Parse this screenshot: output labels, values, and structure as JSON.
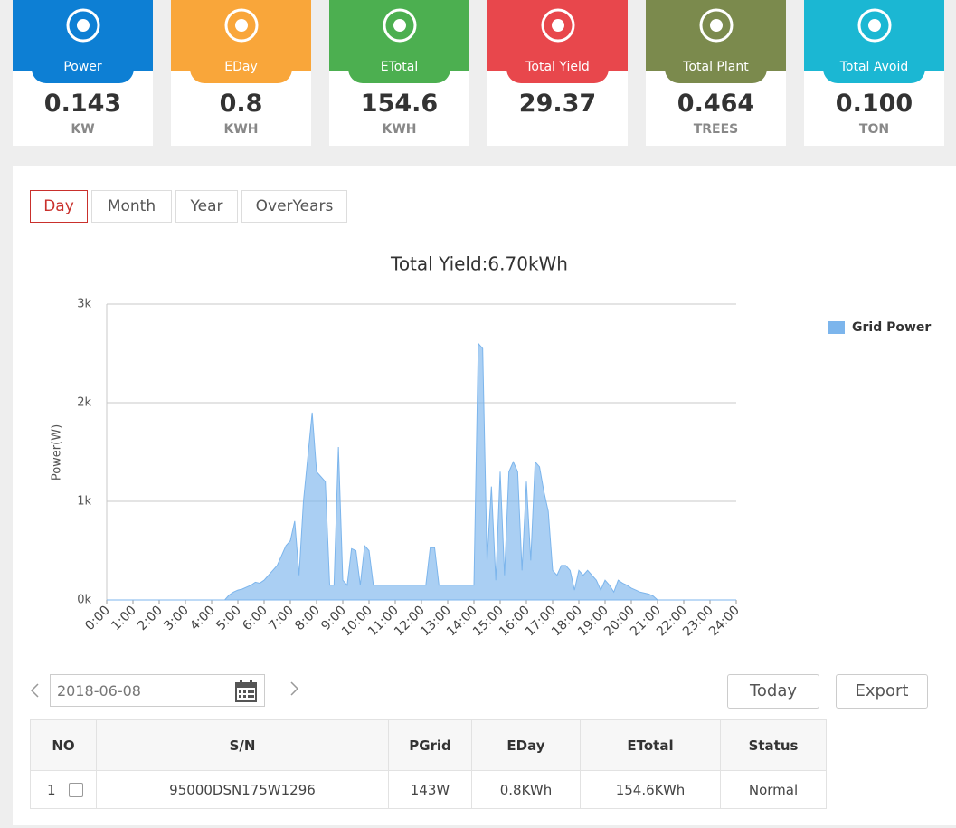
{
  "cards": [
    {
      "label": "Power",
      "value": "0.143",
      "unit": "KW",
      "color": "#0d7fd4"
    },
    {
      "label": "EDay",
      "value": "0.8",
      "unit": "KWH",
      "color": "#f9a63a"
    },
    {
      "label": "ETotal",
      "value": "154.6",
      "unit": "KWH",
      "color": "#4caf50"
    },
    {
      "label": "Total Yield",
      "value": "29.37",
      "unit": "",
      "color": "#e8474c"
    },
    {
      "label": "Total Plant",
      "value": "0.464",
      "unit": "TREES",
      "color": "#7b8a4d"
    },
    {
      "label": "Total Avoid",
      "value": "0.100",
      "unit": "TON",
      "color": "#1bb7d3"
    }
  ],
  "tabs": [
    "Day",
    "Month",
    "Year",
    "OverYears"
  ],
  "chart_data": {
    "type": "area",
    "title": "Total Yield:6.70kWh",
    "y_label": "Power(W)",
    "series": [
      {
        "name": "Grid Power",
        "color": "#7cb5ec",
        "values": [
          0,
          0,
          0,
          0,
          0,
          0,
          0,
          0,
          0,
          0,
          0,
          0,
          0,
          0,
          0,
          0,
          0,
          0,
          0,
          0,
          0,
          0,
          0,
          0,
          0,
          0,
          0,
          0,
          50,
          80,
          100,
          110,
          130,
          150,
          180,
          170,
          200,
          250,
          300,
          350,
          450,
          550,
          600,
          800,
          250,
          1000,
          1450,
          1900,
          1300,
          1250,
          1200,
          150,
          150,
          1550,
          200,
          150,
          520,
          500,
          150,
          550,
          500,
          150,
          150,
          150,
          150,
          150,
          150,
          150,
          150,
          150,
          150,
          150,
          150,
          150,
          530,
          530,
          150,
          150,
          150,
          150,
          150,
          150,
          150,
          150,
          150,
          2600,
          2550,
          400,
          1150,
          200,
          1300,
          250,
          1300,
          1400,
          1300,
          300,
          1200,
          400,
          1400,
          1350,
          1100,
          900,
          300,
          250,
          350,
          350,
          300,
          100,
          300,
          250,
          300,
          250,
          200,
          100,
          200,
          150,
          80,
          200,
          170,
          150,
          120,
          100,
          80,
          70,
          60,
          40,
          0,
          0,
          0,
          0,
          0,
          0,
          0,
          0,
          0,
          0,
          0,
          0,
          0,
          0,
          0,
          0,
          0,
          0,
          0
        ]
      }
    ],
    "x": [
      0,
      10,
      20,
      30,
      40,
      50,
      60,
      70,
      80,
      90,
      100,
      110,
      120,
      130,
      140,
      150,
      160,
      170,
      180,
      190,
      200,
      210,
      220,
      230,
      240,
      250,
      260,
      270,
      280,
      290,
      300,
      310,
      320,
      330,
      340,
      350,
      360,
      370,
      380,
      390,
      400,
      410,
      420,
      430,
      440,
      450,
      460,
      470,
      480,
      490,
      500,
      510,
      520,
      530,
      540,
      550,
      560,
      570,
      580,
      590,
      600,
      610,
      620,
      630,
      640,
      650,
      660,
      670,
      680,
      690,
      700,
      710,
      720,
      730,
      740,
      750,
      760,
      770,
      780,
      790,
      800,
      810,
      820,
      830,
      840,
      850,
      860,
      870,
      880,
      890,
      900,
      910,
      920,
      930,
      940,
      950,
      960,
      970,
      980,
      990,
      1000,
      1010,
      1020,
      1030,
      1040,
      1050,
      1060,
      1070,
      1080,
      1090,
      1100,
      1110,
      1120,
      1130,
      1140,
      1150,
      1160,
      1170,
      1180,
      1190,
      1200,
      1210,
      1220,
      1230,
      1240,
      1250,
      1260,
      1270,
      1280,
      1290,
      1300,
      1310,
      1320,
      1330,
      1340,
      1350,
      1360,
      1370,
      1380,
      1390,
      1400,
      1410,
      1420,
      1430,
      1440
    ],
    "xlim": [
      0,
      1440
    ],
    "xticks": [
      {
        "value": 0,
        "label": "0:00"
      },
      {
        "value": 60,
        "label": "1:00"
      },
      {
        "value": 120,
        "label": "2:00"
      },
      {
        "value": 180,
        "label": "3:00"
      },
      {
        "value": 240,
        "label": "4:00"
      },
      {
        "value": 300,
        "label": "5:00"
      },
      {
        "value": 360,
        "label": "6:00"
      },
      {
        "value": 420,
        "label": "7:00"
      },
      {
        "value": 480,
        "label": "8:00"
      },
      {
        "value": 540,
        "label": "9:00"
      },
      {
        "value": 600,
        "label": "10:00"
      },
      {
        "value": 660,
        "label": "11:00"
      },
      {
        "value": 720,
        "label": "12:00"
      },
      {
        "value": 780,
        "label": "13:00"
      },
      {
        "value": 840,
        "label": "14:00"
      },
      {
        "value": 900,
        "label": "15:00"
      },
      {
        "value": 960,
        "label": "16:00"
      },
      {
        "value": 1020,
        "label": "17:00"
      },
      {
        "value": 1080,
        "label": "18:00"
      },
      {
        "value": 1140,
        "label": "19:00"
      },
      {
        "value": 1200,
        "label": "20:00"
      },
      {
        "value": 1260,
        "label": "21:00"
      },
      {
        "value": 1320,
        "label": "22:00"
      },
      {
        "value": 1380,
        "label": "23:00"
      },
      {
        "value": 1440,
        "label": "24:00"
      }
    ],
    "ylim": [
      0,
      3000
    ],
    "yticks": [
      {
        "value": 0,
        "label": "0k"
      },
      {
        "value": 1000,
        "label": "1k"
      },
      {
        "value": 2000,
        "label": "2k"
      },
      {
        "value": 3000,
        "label": "3k"
      }
    ],
    "grid": true,
    "legend": "right"
  },
  "date": "2018-06-08",
  "buttons": [
    "Today",
    "Export"
  ],
  "table": {
    "headers": [
      "NO",
      "S/N",
      "PGrid",
      "EDay",
      "ETotal",
      "Status"
    ],
    "rows": [
      [
        "1",
        "95000DSN175W1296",
        "143W",
        "0.8KWh",
        "154.6KWh",
        "Normal"
      ]
    ]
  }
}
